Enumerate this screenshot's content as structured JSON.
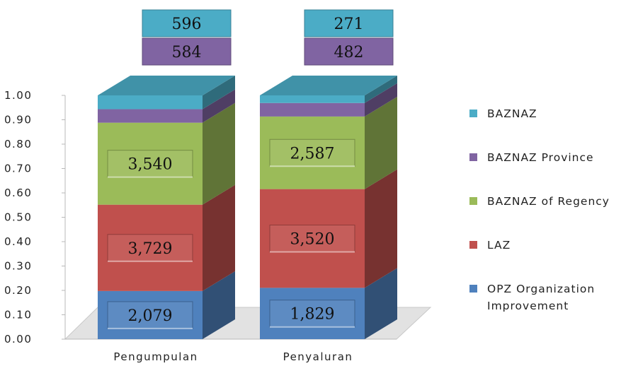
{
  "chart_data": {
    "type": "bar",
    "stacked": true,
    "normalized": true,
    "style": "3d",
    "categories": [
      "Pengumpulan",
      "Penyaluran"
    ],
    "series": [
      {
        "name": "OPZ Organization Improvement",
        "values": [
          2079,
          1829
        ],
        "labels": [
          "2,079",
          "1,829"
        ],
        "color": "#4f81bd"
      },
      {
        "name": "LAZ",
        "values": [
          3729,
          3520
        ],
        "labels": [
          "3,729",
          "3,520"
        ],
        "color": "#c0504d"
      },
      {
        "name": "BAZNAZ of Regency",
        "values": [
          3540,
          2587
        ],
        "labels": [
          "3,540",
          "2,587"
        ],
        "color": "#9bbb59"
      },
      {
        "name": "BAZNAZ Province",
        "values": [
          584,
          482
        ],
        "labels": [
          "584",
          "482"
        ],
        "color": "#8064a2"
      },
      {
        "name": "BAZNAZ",
        "values": [
          596,
          271
        ],
        "labels": [
          "596",
          "271"
        ],
        "color": "#4bacc6"
      }
    ],
    "yticks": [
      "0.00",
      "0.10",
      "0.20",
      "0.30",
      "0.40",
      "0.50",
      "0.60",
      "0.70",
      "0.80",
      "0.90",
      "1.00"
    ],
    "ylim": [
      0,
      1
    ],
    "legend_position": "right",
    "legend_order": [
      "BAZNAZ",
      "BAZNAZ Province",
      "BAZNAZ of Regency",
      "LAZ",
      "OPZ Organization Improvement"
    ],
    "legend_lines": {
      "BAZNAZ": [
        "BAZNAZ"
      ],
      "BAZNAZ Province": [
        "BAZNAZ Province"
      ],
      "BAZNAZ of Regency": [
        "BAZNAZ of Regency"
      ],
      "LAZ": [
        "LAZ"
      ],
      "OPZ Organization Improvement": [
        "OPZ Organization",
        "Improvement"
      ]
    }
  }
}
